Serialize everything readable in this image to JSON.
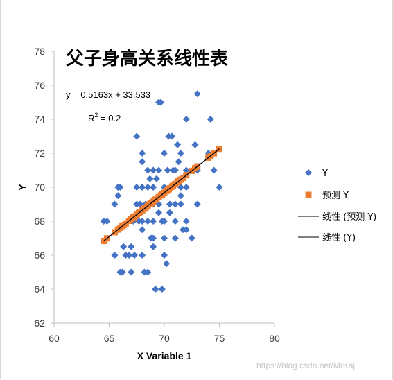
{
  "chart_data": {
    "type": "scatter",
    "title": "父子身高关系线性表",
    "xlabel": "X Variable 1",
    "ylabel": "Y",
    "xlim": [
      60,
      80
    ],
    "ylim": [
      62,
      78
    ],
    "xticks": [
      60,
      65,
      70,
      75,
      80
    ],
    "yticks": [
      62,
      64,
      66,
      68,
      70,
      72,
      74,
      76,
      78
    ],
    "grid": false,
    "legend_position": "right",
    "equation": "y = 0.5163x + 33.533",
    "r2_prefix": "R",
    "r2_sup": "2",
    "r2_suffix": " = 0.2",
    "series": [
      {
        "name": "Y",
        "kind": "scatter",
        "marker": "diamond",
        "color": "#4472c4",
        "points": [
          [
            64.5,
            68
          ],
          [
            64.8,
            68
          ],
          [
            65.5,
            66
          ],
          [
            65.5,
            69
          ],
          [
            65.8,
            70
          ],
          [
            65.8,
            69.5
          ],
          [
            66,
            70
          ],
          [
            65.8,
            67.5
          ],
          [
            66,
            65
          ],
          [
            66.2,
            65
          ],
          [
            66.3,
            66.5
          ],
          [
            66.5,
            66
          ],
          [
            66.8,
            66
          ],
          [
            67,
            66.5
          ],
          [
            67,
            65
          ],
          [
            67.2,
            68
          ],
          [
            67.3,
            66
          ],
          [
            67.5,
            73
          ],
          [
            67.5,
            70
          ],
          [
            67.5,
            69
          ],
          [
            67.7,
            68
          ],
          [
            67.8,
            69
          ],
          [
            68,
            72
          ],
          [
            68,
            71.5
          ],
          [
            68,
            70
          ],
          [
            68,
            68
          ],
          [
            68,
            66
          ],
          [
            68,
            67.5
          ],
          [
            68.2,
            65
          ],
          [
            68.3,
            69
          ],
          [
            68.5,
            71
          ],
          [
            68.5,
            70
          ],
          [
            68.5,
            68
          ],
          [
            68.5,
            65
          ],
          [
            68.7,
            70.5
          ],
          [
            68.8,
            67
          ],
          [
            69,
            71
          ],
          [
            69,
            70
          ],
          [
            69,
            69
          ],
          [
            69,
            68
          ],
          [
            69,
            67
          ],
          [
            69,
            66.5
          ],
          [
            69.2,
            64
          ],
          [
            69.3,
            70.5
          ],
          [
            69.5,
            75
          ],
          [
            69.5,
            71
          ],
          [
            69.5,
            69
          ],
          [
            69.5,
            68.5
          ],
          [
            69.7,
            75
          ],
          [
            69.8,
            68
          ],
          [
            69.8,
            64
          ],
          [
            70,
            72
          ],
          [
            70,
            70
          ],
          [
            70,
            68
          ],
          [
            70,
            67
          ],
          [
            70,
            66
          ],
          [
            70.2,
            65.5
          ],
          [
            70.3,
            71
          ],
          [
            70.4,
            73
          ],
          [
            70.5,
            69
          ],
          [
            70.5,
            68.5
          ],
          [
            70.7,
            73
          ],
          [
            70.8,
            71
          ],
          [
            71,
            71
          ],
          [
            71,
            69
          ],
          [
            71,
            68
          ],
          [
            71,
            67
          ],
          [
            71.2,
            72.5
          ],
          [
            71.3,
            71.5
          ],
          [
            71.5,
            72
          ],
          [
            71.5,
            70
          ],
          [
            71.5,
            69.5
          ],
          [
            71.5,
            69
          ],
          [
            71.7,
            67.5
          ],
          [
            72,
            71
          ],
          [
            72,
            68
          ],
          [
            72,
            67.5
          ],
          [
            72,
            70
          ],
          [
            72,
            74
          ],
          [
            72.5,
            67
          ],
          [
            72.8,
            72.5
          ],
          [
            73,
            75.5
          ],
          [
            73,
            69
          ],
          [
            73,
            71
          ],
          [
            74,
            72
          ],
          [
            74.2,
            74
          ],
          [
            74.5,
            71
          ],
          [
            75,
            70
          ]
        ]
      },
      {
        "name": "预测 Y",
        "kind": "scatter",
        "marker": "square",
        "color": "#ed7d31",
        "x": [
          64.5,
          64.8,
          65.5,
          65.8,
          66,
          66.2,
          66.3,
          66.5,
          66.8,
          67,
          67.2,
          67.3,
          67.5,
          67.7,
          67.8,
          68,
          68.2,
          68.3,
          68.5,
          68.7,
          68.8,
          69,
          69.2,
          69.3,
          69.5,
          69.7,
          69.8,
          70,
          70.2,
          70.3,
          70.4,
          70.5,
          70.7,
          70.8,
          71,
          71.2,
          71.3,
          71.5,
          71.7,
          72,
          72.5,
          72.8,
          73,
          74,
          74.2,
          74.5,
          75
        ]
      },
      {
        "name": "线性 (预测 Y)",
        "kind": "trendline",
        "color": "#000000",
        "slope": 0.5163,
        "intercept": 33.533,
        "x_range": [
          64.5,
          75
        ]
      },
      {
        "name": "线性 (Y)",
        "kind": "trendline",
        "color": "#000000",
        "slope": 0.5163,
        "intercept": 33.533,
        "x_range": [
          64.5,
          75
        ]
      }
    ]
  },
  "watermark": "https://blog.csdn.net/MrKaj"
}
